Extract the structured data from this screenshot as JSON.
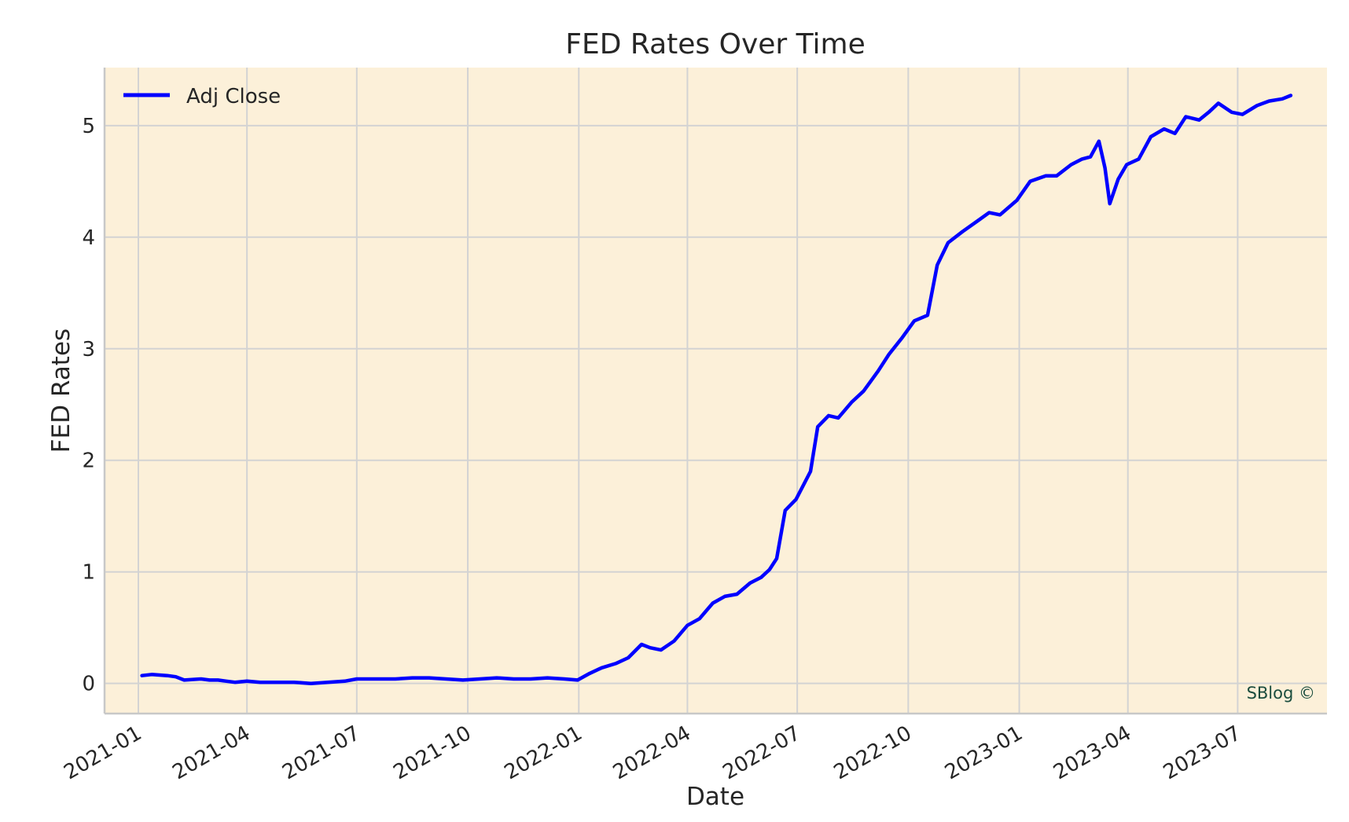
{
  "chart_data": {
    "type": "line",
    "title": "FED Rates Over Time",
    "xlabel": "Date",
    "ylabel": "FED Rates",
    "watermark": "SBlog ©",
    "legend": {
      "placement": "top-left",
      "entries": [
        "Adj Close"
      ]
    },
    "grid": true,
    "x_range": [
      "2020-12-04",
      "2023-09-13"
    ],
    "ylim": [
      -0.27,
      5.52
    ],
    "x_ticks": [
      "2021-01",
      "2021-04",
      "2021-07",
      "2021-10",
      "2022-01",
      "2022-04",
      "2022-07",
      "2022-10",
      "2023-01",
      "2023-04",
      "2023-07"
    ],
    "y_ticks": [
      "0",
      "1",
      "2",
      "3",
      "4",
      "5"
    ],
    "colors": {
      "line": "#0000ff",
      "plot_background": "#fcf0d9",
      "grid": "#d3d3d3",
      "watermark": "#1b4d3e"
    },
    "series": [
      {
        "name": "Adj Close",
        "x": [
          "2021-01-04",
          "2021-01-12",
          "2021-01-25",
          "2021-02-01",
          "2021-02-08",
          "2021-02-22",
          "2021-03-01",
          "2021-03-08",
          "2021-03-15",
          "2021-03-22",
          "2021-04-01",
          "2021-04-12",
          "2021-04-26",
          "2021-05-10",
          "2021-05-24",
          "2021-06-07",
          "2021-06-21",
          "2021-07-01",
          "2021-07-19",
          "2021-08-02",
          "2021-08-16",
          "2021-08-30",
          "2021-09-13",
          "2021-09-27",
          "2021-10-11",
          "2021-10-25",
          "2021-11-08",
          "2021-11-22",
          "2021-12-06",
          "2021-12-20",
          "2021-12-31",
          "2022-01-10",
          "2022-01-20",
          "2022-02-01",
          "2022-02-11",
          "2022-02-22",
          "2022-03-01",
          "2022-03-10",
          "2022-03-21",
          "2022-04-01",
          "2022-04-11",
          "2022-04-22",
          "2022-05-02",
          "2022-05-12",
          "2022-05-23",
          "2022-06-01",
          "2022-06-08",
          "2022-06-14",
          "2022-06-21",
          "2022-06-30",
          "2022-07-12",
          "2022-07-18",
          "2022-07-27",
          "2022-08-04",
          "2022-08-15",
          "2022-08-25",
          "2022-09-06",
          "2022-09-15",
          "2022-09-26",
          "2022-10-06",
          "2022-10-17",
          "2022-10-25",
          "2022-11-03",
          "2022-11-15",
          "2022-11-28",
          "2022-12-07",
          "2022-12-16",
          "2022-12-30",
          "2023-01-10",
          "2023-01-23",
          "2023-02-01",
          "2023-02-13",
          "2023-02-22",
          "2023-03-01",
          "2023-03-08",
          "2023-03-13",
          "2023-03-17",
          "2023-03-24",
          "2023-03-31",
          "2023-04-10",
          "2023-04-20",
          "2023-05-01",
          "2023-05-10",
          "2023-05-19",
          "2023-05-30",
          "2023-06-07",
          "2023-06-15",
          "2023-06-26",
          "2023-07-05",
          "2023-07-17",
          "2023-07-27",
          "2023-08-07",
          "2023-08-14"
        ],
        "values": [
          0.07,
          0.08,
          0.07,
          0.06,
          0.03,
          0.04,
          0.03,
          0.03,
          0.02,
          0.01,
          0.02,
          0.01,
          0.01,
          0.01,
          0.0,
          0.01,
          0.02,
          0.04,
          0.04,
          0.04,
          0.05,
          0.05,
          0.04,
          0.03,
          0.04,
          0.05,
          0.04,
          0.04,
          0.05,
          0.04,
          0.03,
          0.09,
          0.14,
          0.18,
          0.23,
          0.35,
          0.32,
          0.3,
          0.38,
          0.52,
          0.58,
          0.72,
          0.78,
          0.8,
          0.9,
          0.95,
          1.02,
          1.12,
          1.55,
          1.65,
          1.9,
          2.3,
          2.4,
          2.38,
          2.52,
          2.62,
          2.8,
          2.95,
          3.1,
          3.25,
          3.3,
          3.75,
          3.95,
          4.05,
          4.15,
          4.22,
          4.2,
          4.33,
          4.5,
          4.55,
          4.55,
          4.65,
          4.7,
          4.72,
          4.86,
          4.62,
          4.3,
          4.52,
          4.65,
          4.7,
          4.9,
          4.97,
          4.93,
          5.08,
          5.05,
          5.12,
          5.2,
          5.12,
          5.1,
          5.18,
          5.22,
          5.24,
          5.27
        ]
      }
    ]
  }
}
